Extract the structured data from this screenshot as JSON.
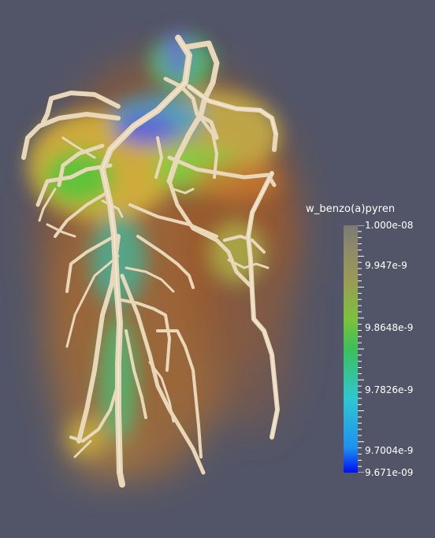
{
  "colorbar": {
    "title": "w_benzo(a)pyren",
    "labels": [
      {
        "text": "1.000e-08",
        "value": 1.0
      },
      {
        "text": "9.947e-9",
        "value": 0.837
      },
      {
        "text": "9.8648e-9",
        "value": 0.586
      },
      {
        "text": "9.7826e-9",
        "value": 0.335
      },
      {
        "text": "9.7004e-9",
        "value": 0.089
      },
      {
        "text": "9.671e-09",
        "value": 0.0
      }
    ],
    "colors": [
      "#0010f0",
      "#1e90f0",
      "#2ec8d0",
      "#3cbf5a",
      "#7cc23a",
      "#9a9a55",
      "#8f8a6a",
      "#7e7a70"
    ]
  }
}
